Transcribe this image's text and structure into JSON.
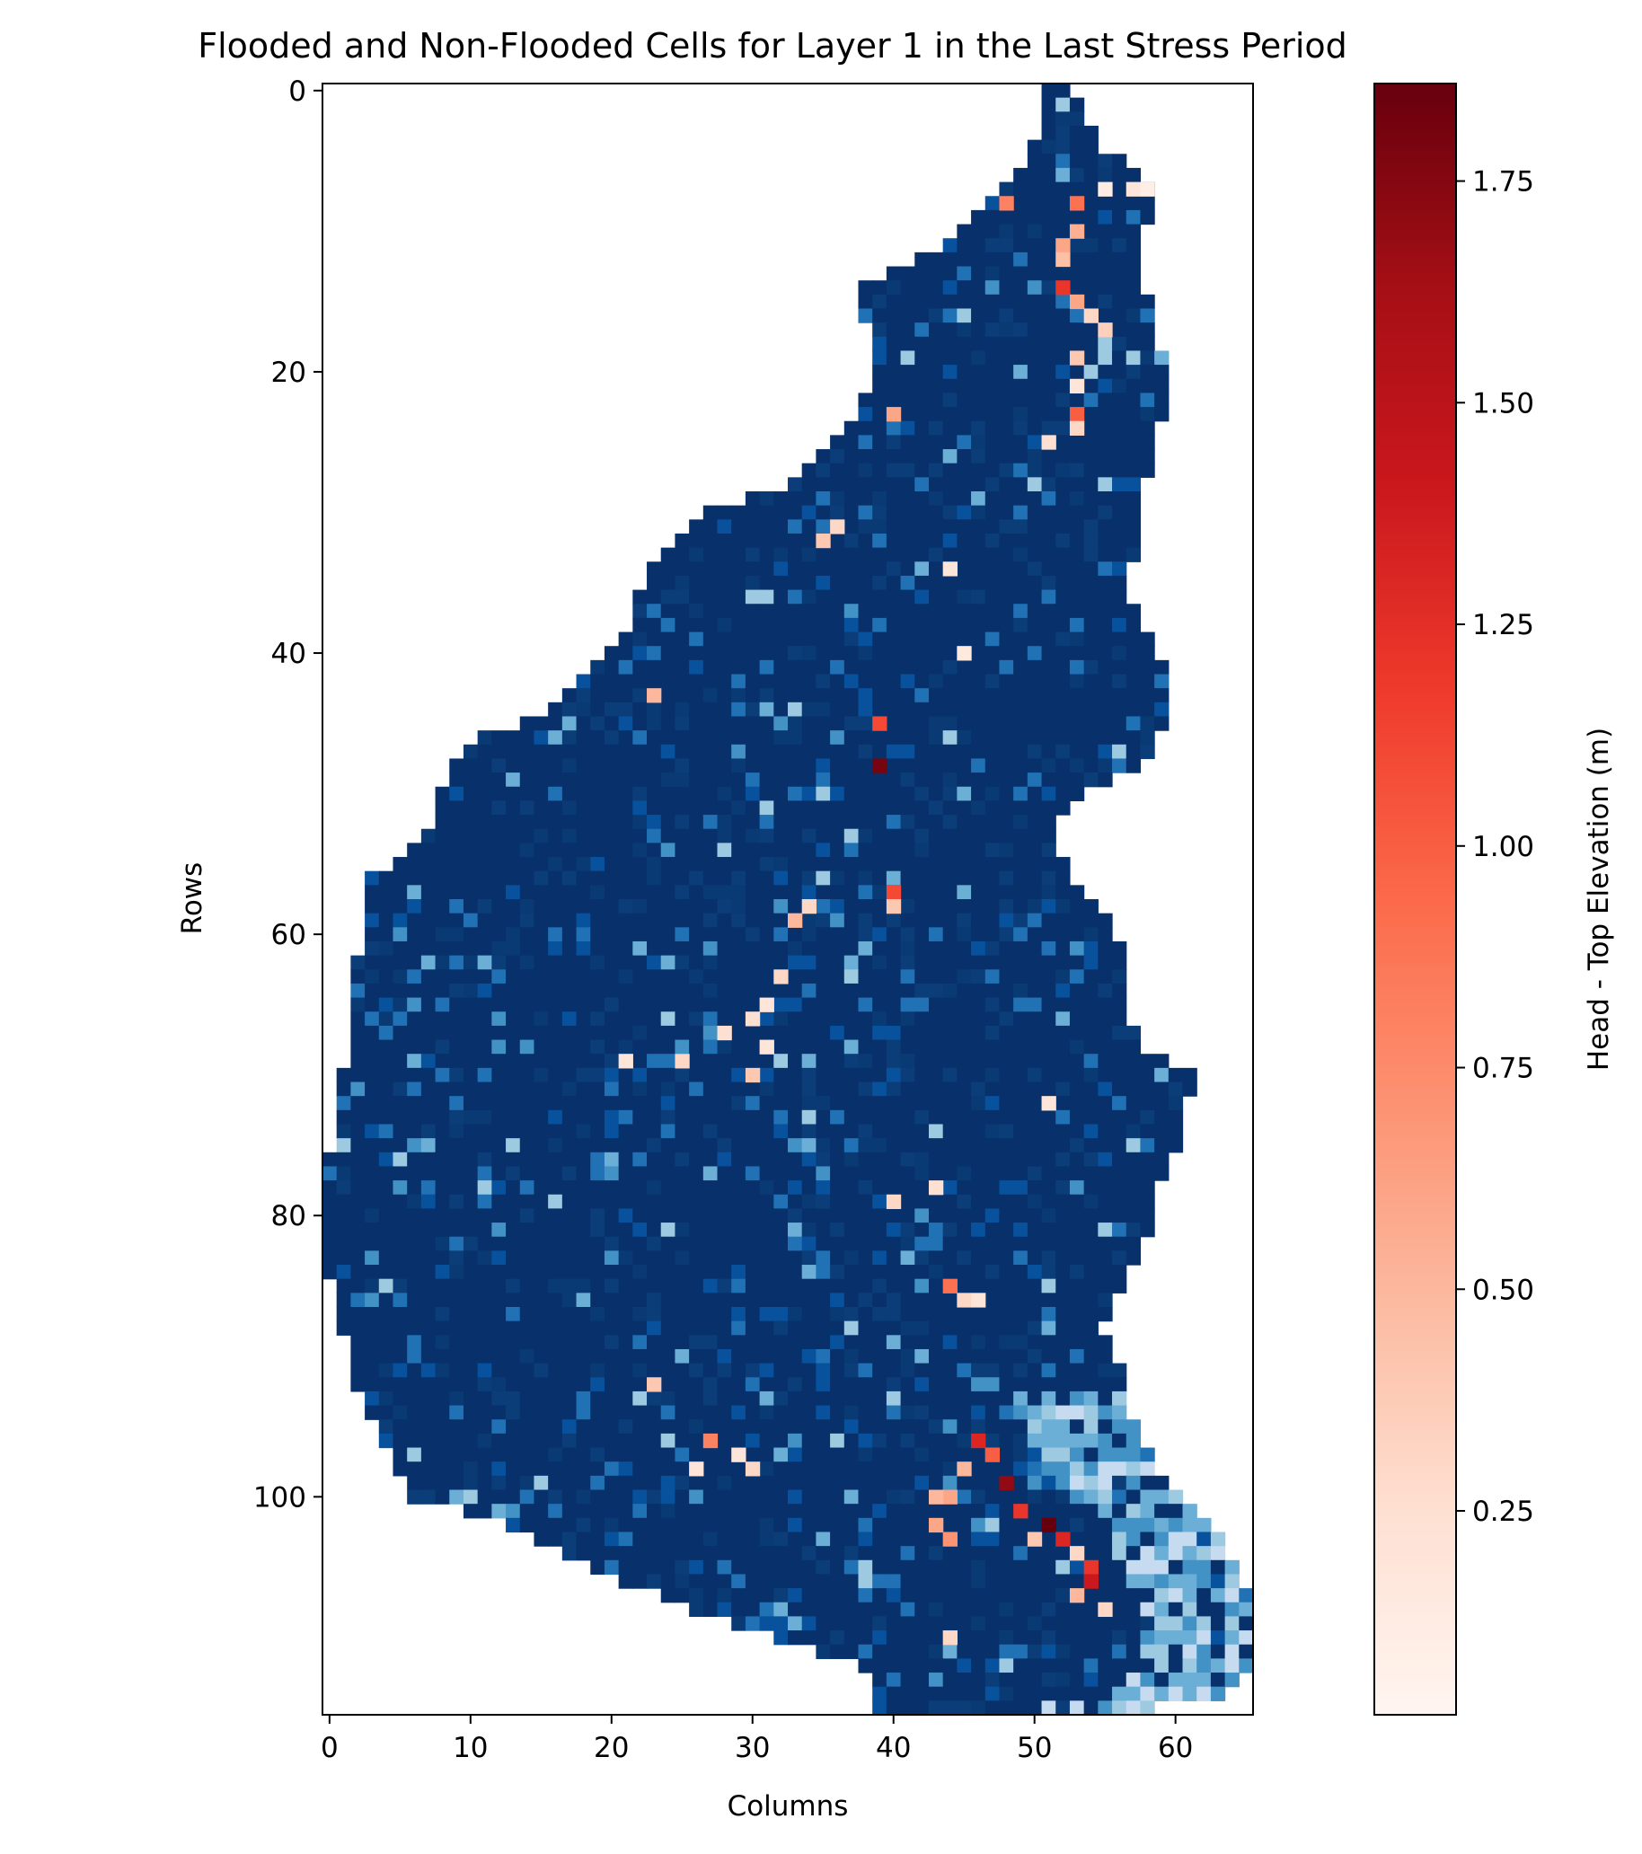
{
  "chart_data": {
    "type": "heatmap",
    "title": "Flooded and Non-Flooded Cells for Layer 1 in the Last Stress Period",
    "xlabel": "Columns",
    "ylabel": "Rows",
    "xlim": [
      -0.5,
      65.5
    ],
    "ylim": [
      115.5,
      -0.5
    ],
    "x_ticks": [
      0,
      10,
      20,
      30,
      40,
      50,
      60
    ],
    "y_ticks": [
      0,
      20,
      40,
      60,
      80,
      100
    ],
    "grid": false,
    "colorbar": {
      "label": "Head - Top Elevation (m)",
      "colormap": "Reds",
      "range": [
        0.02,
        1.86
      ],
      "ticks": [
        0.25,
        0.5,
        0.75,
        1.0,
        1.25,
        1.5,
        1.75
      ],
      "tick_labels": [
        "0.25",
        "0.50",
        "0.75",
        "1.00",
        "1.25",
        "1.50",
        "1.75"
      ]
    },
    "non_flooded_colormap": "Blues",
    "non_flooded_color": "#08306b",
    "domain_outline": {
      "row_extents": [
        [
          0,
          51,
          52
        ],
        [
          2,
          51,
          53
        ],
        [
          4,
          50,
          54
        ],
        [
          6,
          49,
          57
        ],
        [
          8,
          47,
          58
        ],
        [
          10,
          45,
          57
        ],
        [
          12,
          42,
          57
        ],
        [
          14,
          38,
          57
        ],
        [
          16,
          38,
          58
        ],
        [
          18,
          39,
          58
        ],
        [
          20,
          39,
          59
        ],
        [
          22,
          38,
          59
        ],
        [
          24,
          37,
          58
        ],
        [
          26,
          35,
          58
        ],
        [
          28,
          33,
          57
        ],
        [
          30,
          27,
          57
        ],
        [
          32,
          25,
          57
        ],
        [
          34,
          23,
          56
        ],
        [
          36,
          22,
          56
        ],
        [
          38,
          22,
          57
        ],
        [
          40,
          20,
          58
        ],
        [
          42,
          18,
          59
        ],
        [
          44,
          16,
          59
        ],
        [
          46,
          11,
          58
        ],
        [
          48,
          9,
          57
        ],
        [
          50,
          8,
          53
        ],
        [
          52,
          8,
          51
        ],
        [
          54,
          6,
          51
        ],
        [
          56,
          3,
          52
        ],
        [
          58,
          3,
          54
        ],
        [
          60,
          3,
          55
        ],
        [
          62,
          2,
          56
        ],
        [
          64,
          2,
          56
        ],
        [
          66,
          2,
          56
        ],
        [
          68,
          2,
          57
        ],
        [
          70,
          1,
          61
        ],
        [
          72,
          1,
          60
        ],
        [
          74,
          1,
          60
        ],
        [
          76,
          0,
          59
        ],
        [
          78,
          0,
          58
        ],
        [
          80,
          0,
          58
        ],
        [
          82,
          0,
          57
        ],
        [
          84,
          0,
          56
        ],
        [
          86,
          1,
          55
        ],
        [
          88,
          1,
          54
        ],
        [
          90,
          2,
          55
        ],
        [
          92,
          2,
          56
        ],
        [
          94,
          3,
          56
        ],
        [
          96,
          4,
          57
        ],
        [
          98,
          5,
          58
        ],
        [
          100,
          6,
          60
        ],
        [
          102,
          13,
          62
        ],
        [
          104,
          17,
          63
        ],
        [
          106,
          21,
          64
        ],
        [
          108,
          26,
          65
        ],
        [
          110,
          32,
          65
        ],
        [
          112,
          38,
          65
        ],
        [
          114,
          39,
          63
        ],
        [
          115,
          39,
          58
        ]
      ]
    },
    "flooded_cells": [
      [
        7,
        55,
        0.12
      ],
      [
        7,
        57,
        0.2
      ],
      [
        7,
        58,
        0.1
      ],
      [
        8,
        48,
        0.8
      ],
      [
        8,
        53,
        0.9
      ],
      [
        10,
        53,
        0.55
      ],
      [
        11,
        52,
        0.6
      ],
      [
        12,
        52,
        0.45
      ],
      [
        14,
        52,
        1.2
      ],
      [
        15,
        53,
        0.6
      ],
      [
        16,
        54,
        0.3
      ],
      [
        17,
        55,
        0.35
      ],
      [
        19,
        53,
        0.4
      ],
      [
        21,
        53,
        0.2
      ],
      [
        23,
        53,
        1.0
      ],
      [
        23,
        40,
        0.6
      ],
      [
        24,
        53,
        0.3
      ],
      [
        25,
        51,
        0.25
      ],
      [
        31,
        36,
        0.3
      ],
      [
        32,
        35,
        0.4
      ],
      [
        34,
        44,
        0.2
      ],
      [
        40,
        45,
        0.15
      ],
      [
        43,
        23,
        0.5
      ],
      [
        45,
        39,
        1.1
      ],
      [
        48,
        39,
        1.8
      ],
      [
        57,
        40,
        1.1
      ],
      [
        58,
        34,
        0.3
      ],
      [
        58,
        40,
        0.4
      ],
      [
        59,
        33,
        0.5
      ],
      [
        63,
        32,
        0.3
      ],
      [
        65,
        31,
        0.2
      ],
      [
        66,
        30,
        0.25
      ],
      [
        67,
        28,
        0.25
      ],
      [
        68,
        31,
        0.2
      ],
      [
        69,
        21,
        0.2
      ],
      [
        69,
        25,
        0.3
      ],
      [
        70,
        30,
        0.4
      ],
      [
        72,
        51,
        0.2
      ],
      [
        78,
        43,
        0.25
      ],
      [
        79,
        40,
        0.3
      ],
      [
        85,
        44,
        0.9
      ],
      [
        86,
        45,
        0.3
      ],
      [
        86,
        46,
        0.2
      ],
      [
        92,
        23,
        0.4
      ],
      [
        96,
        27,
        0.8
      ],
      [
        97,
        29,
        0.2
      ],
      [
        98,
        26,
        0.2
      ],
      [
        98,
        30,
        0.3
      ],
      [
        96,
        46,
        1.3
      ],
      [
        97,
        47,
        1.0
      ],
      [
        98,
        45,
        0.5
      ],
      [
        99,
        48,
        1.7
      ],
      [
        100,
        44,
        0.6
      ],
      [
        101,
        49,
        1.2
      ],
      [
        102,
        51,
        1.86
      ],
      [
        103,
        52,
        1.3
      ],
      [
        103,
        50,
        0.4
      ],
      [
        104,
        53,
        0.3
      ],
      [
        105,
        54,
        1.2
      ],
      [
        106,
        54,
        1.4
      ],
      [
        107,
        53,
        0.5
      ],
      [
        108,
        55,
        0.3
      ],
      [
        110,
        44,
        0.3
      ],
      [
        100,
        43,
        0.5
      ],
      [
        102,
        43,
        0.6
      ],
      [
        103,
        44,
        0.7
      ]
    ]
  }
}
